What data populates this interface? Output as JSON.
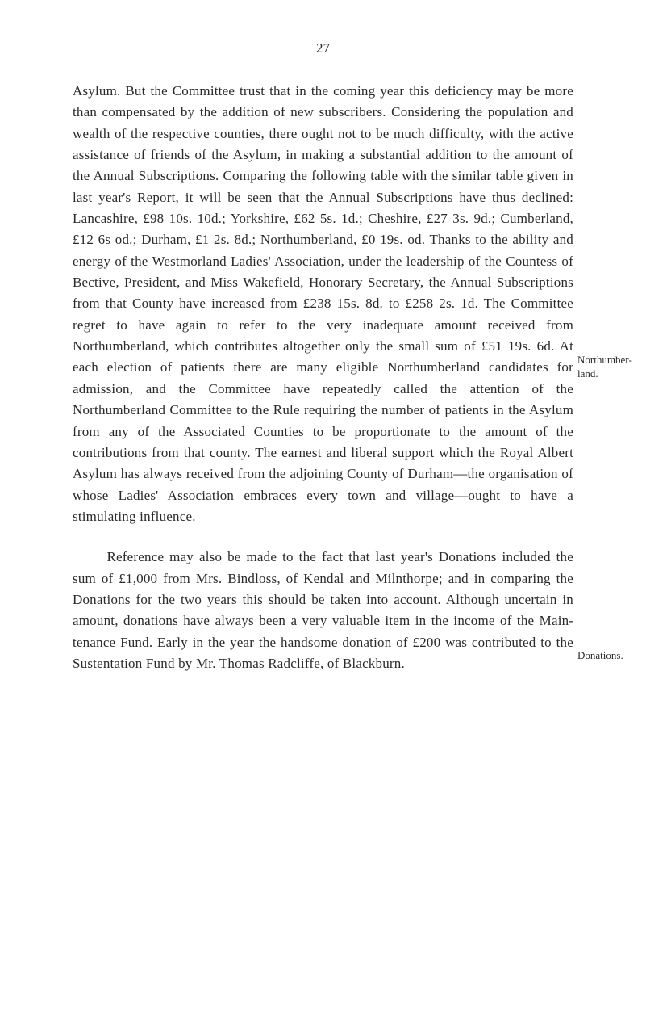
{
  "page": {
    "number": "27",
    "background_color": "#ffffff",
    "text_color": "#2a2a2a",
    "font_size_body": 17,
    "font_size_margin": 13,
    "line_height": 1.55
  },
  "paragraphs": {
    "p1": "Asylum. But the Committee trust that in the coming year this deficiency may be more than compensated by the addition of new subscribers. Considering the population and wealth of the respective counties, there ought not to be much difficulty, with the active assistance of friends of the Asylum, in making a substantial addition to the amount of the Annual Subscriptions. Comparing the following table with the similar table given in last year's Report, it will be seen that the Annual Subscriptions have thus declined: Lancashire, £98 10s. 10d.; Yorkshire, £62 5s. 1d.; Cheshire, £27 3s. 9d.; Cumberland, £12 6s od.; Durham, £1 2s. 8d.; Northumberland, £0 19s. od. Thanks to the ability and energy of the Westmorland Ladies' Association, under the leadership of the Countess of Bective, President, and Miss Wakefield, Honorary Secretary, the Annual Subscrip­tions from that County have increased from £238 15s. 8d. to £258 2s. 1d. The Committee regret to have again to refer to the very inadequate amount received from Northumberland, which contributes altogether only the small sum of £51 19s. 6d. At each election of patients there are many eligible Northumberland candidates for admission, and the Committee have repeatedly called the attention of the Northumberland Committee to the Rule requiring the number of patients in the Asylum from any of the Associated Counties to be proportionate to the amount of the contributions from that county. The earnest and liberal support which the Royal Albert Asylum has always received from the adjoining County of Durham—the organisation of whose Ladies' Association embraces every town and village—ought to have a stimulating influence.",
    "p2": "Reference may also be made to the fact that last year's Donations included the sum of £1,000 from Mrs. Bindloss, of Kendal and Milnthorpe; and in comparing the Donations for the two years this should be taken into account. Although uncertain in amount, donations have always been a very valuable item in the income of the Main­tenance Fund. Early in the year the handsome donation of £200 was contributed to the Sustentation Fund by Mr. Thomas Radcliffe, of Blackburn."
  },
  "margin_notes": {
    "note1": "Northumber­land.",
    "note2": "Donations."
  }
}
